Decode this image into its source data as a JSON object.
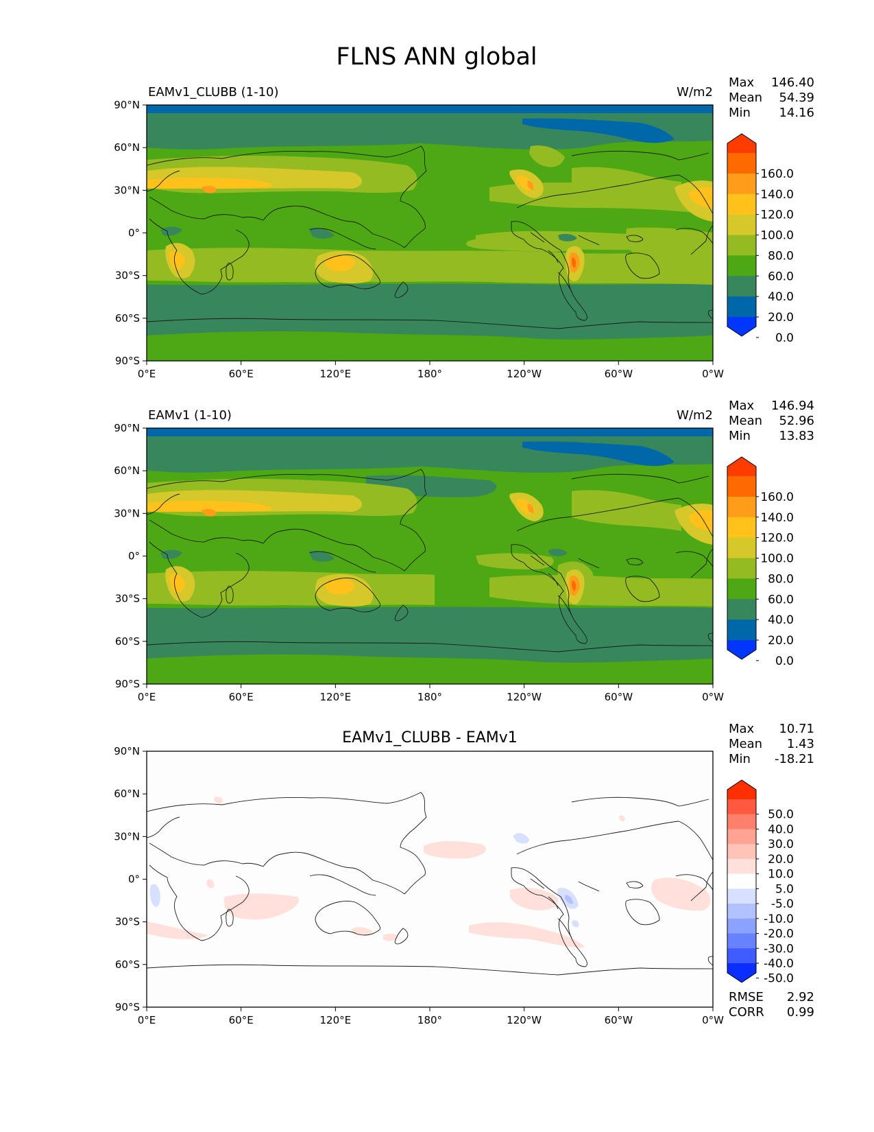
{
  "figure": {
    "title": "FLNS ANN global",
    "lat_ticks": [
      "90°N",
      "60°N",
      "30°N",
      "0°",
      "30°S",
      "60°S",
      "90°S"
    ],
    "lon_ticks": [
      "0°E",
      "60°E",
      "120°E",
      "180°",
      "120°W",
      "60°W",
      "0°W"
    ]
  },
  "panels": [
    {
      "id": "test",
      "title_left": "EAMv1_CLUBB (1-10)",
      "title_center": "",
      "units": "W/m2",
      "stats": [
        {
          "label": "Max",
          "value": "146.40"
        },
        {
          "label": "Mean",
          "value": "54.39"
        },
        {
          "label": "Min",
          "value": "14.16"
        }
      ],
      "colorbar": {
        "labels": [
          "160.0",
          "140.0",
          "120.0",
          "100.0",
          "80.0",
          "60.0",
          "40.0",
          "20.0",
          "0.0"
        ],
        "colors": [
          "#ff3c00",
          "#ff6a00",
          "#ff9c1a",
          "#ffc11a",
          "#d6c82a",
          "#94bc22",
          "#4ea814",
          "#37865c",
          "#0068a8",
          "#0036ff"
        ]
      }
    },
    {
      "id": "reference",
      "title_left": "EAMv1 (1-10)",
      "title_center": "",
      "units": "W/m2",
      "stats": [
        {
          "label": "Max",
          "value": "146.94"
        },
        {
          "label": "Mean",
          "value": "52.96"
        },
        {
          "label": "Min",
          "value": "13.83"
        }
      ],
      "colorbar": {
        "labels": [
          "160.0",
          "140.0",
          "120.0",
          "100.0",
          "80.0",
          "60.0",
          "40.0",
          "20.0",
          "0.0"
        ],
        "colors": [
          "#ff3c00",
          "#ff6a00",
          "#ff9c1a",
          "#ffc11a",
          "#d6c82a",
          "#94bc22",
          "#4ea814",
          "#37865c",
          "#0068a8",
          "#0036ff"
        ]
      }
    },
    {
      "id": "difference",
      "title_left": "",
      "title_center": "EAMv1_CLUBB - EAMv1",
      "units": "",
      "stats": [
        {
          "label": "Max",
          "value": "10.71"
        },
        {
          "label": "Mean",
          "value": "1.43"
        },
        {
          "label": "Min",
          "value": "-18.21"
        }
      ],
      "colorbar": {
        "labels": [
          "50.0",
          "40.0",
          "30.0",
          "20.0",
          "10.0",
          "5.0",
          "-5.0",
          "-10.0",
          "-20.0",
          "-30.0",
          "-40.0",
          "-50.0"
        ],
        "colors": [
          "#ff3000",
          "#ff5a40",
          "#ff806a",
          "#ffa393",
          "#ffc3b8",
          "#ffe0da",
          "#ffffff",
          "#d8e0ff",
          "#b2c1ff",
          "#8ca2ff",
          "#6782ff",
          "#3f5dff",
          "#0a2eff"
        ]
      },
      "bottom_stats": [
        {
          "label": "RMSE",
          "value": "2.92"
        },
        {
          "label": "CORR",
          "value": "0.99"
        }
      ]
    }
  ]
}
